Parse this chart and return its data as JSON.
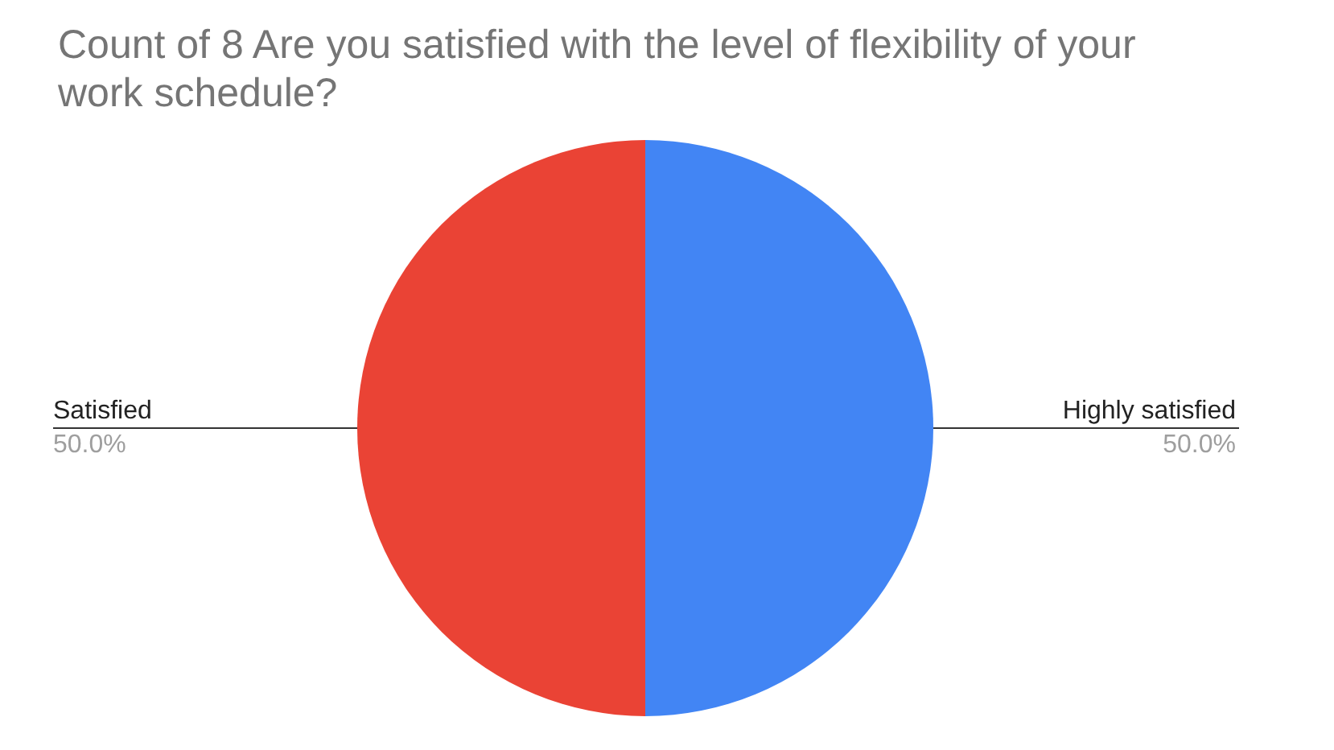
{
  "chart_data": {
    "type": "pie",
    "title": "Count of 8 Are you satisfied with the level of flexibility of your work schedule?",
    "categories": [
      "Highly satisfied",
      "Satisfied"
    ],
    "values": [
      50,
      50
    ],
    "colors": [
      "#4285f4",
      "#ea4335"
    ],
    "value_labels": [
      "50.0%",
      "50.0%"
    ],
    "legend": false
  }
}
